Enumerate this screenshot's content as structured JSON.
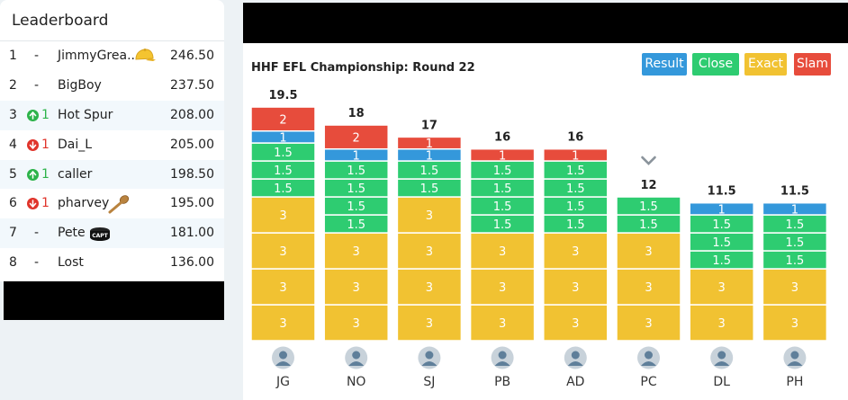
{
  "leaderboard": {
    "title": "Leaderboard",
    "rows": [
      {
        "rank": "1",
        "move": "-",
        "dir": "none",
        "name": "JimmyGrea...",
        "badge": "hat",
        "score": "246.50"
      },
      {
        "rank": "2",
        "move": "-",
        "dir": "none",
        "name": "BigBoy",
        "badge": "",
        "score": "237.50"
      },
      {
        "rank": "3",
        "move": "1",
        "dir": "up",
        "name": "Hot Spur",
        "badge": "",
        "score": "208.00"
      },
      {
        "rank": "4",
        "move": "1",
        "dir": "down",
        "name": "Dai_L",
        "badge": "",
        "score": "205.00"
      },
      {
        "rank": "5",
        "move": "1",
        "dir": "up",
        "name": "caller",
        "badge": "",
        "score": "198.50"
      },
      {
        "rank": "6",
        "move": "1",
        "dir": "down",
        "name": "pharvey",
        "badge": "spoon",
        "score": "195.00"
      },
      {
        "rank": "7",
        "move": "-",
        "dir": "none",
        "name": "Pete",
        "badge": "capt",
        "score": "181.00"
      },
      {
        "rank": "8",
        "move": "-",
        "dir": "none",
        "name": "Lost",
        "badge": "",
        "score": "136.00"
      }
    ],
    "captain_badge_text": "CAPT"
  },
  "chart": {
    "title": "HHF EFL Championship: Round 22"
  },
  "colors": {
    "result": "#3498db",
    "close": "#2ecc71",
    "exact": "#f1c232",
    "slam": "#e74c3c"
  },
  "chart_data": {
    "type": "bar",
    "stacked": true,
    "title": "HHF EFL Championship: Round 22",
    "legend": [
      "Result",
      "Close",
      "Exact",
      "Slam"
    ],
    "legend_position": "top-right",
    "players": [
      "JG",
      "NO",
      "SJ",
      "PB",
      "AD",
      "PC",
      "DL",
      "PH"
    ],
    "totals": [
      "19.5",
      "18",
      "17",
      "16",
      "16",
      "12",
      "11.5",
      "11.5"
    ],
    "stacks": [
      [
        {
          "cat": "exact",
          "v": 3
        },
        {
          "cat": "exact",
          "v": 3
        },
        {
          "cat": "exact",
          "v": 3
        },
        {
          "cat": "exact",
          "v": 3
        },
        {
          "cat": "close",
          "v": 1.5
        },
        {
          "cat": "close",
          "v": 1.5
        },
        {
          "cat": "close",
          "v": 1.5
        },
        {
          "cat": "result",
          "v": 1
        },
        {
          "cat": "slam",
          "v": 2
        }
      ],
      [
        {
          "cat": "exact",
          "v": 3
        },
        {
          "cat": "exact",
          "v": 3
        },
        {
          "cat": "exact",
          "v": 3
        },
        {
          "cat": "close",
          "v": 1.5
        },
        {
          "cat": "close",
          "v": 1.5
        },
        {
          "cat": "close",
          "v": 1.5
        },
        {
          "cat": "close",
          "v": 1.5
        },
        {
          "cat": "result",
          "v": 1
        },
        {
          "cat": "slam",
          "v": 2
        }
      ],
      [
        {
          "cat": "exact",
          "v": 3
        },
        {
          "cat": "exact",
          "v": 3
        },
        {
          "cat": "exact",
          "v": 3
        },
        {
          "cat": "exact",
          "v": 3
        },
        {
          "cat": "close",
          "v": 1.5
        },
        {
          "cat": "close",
          "v": 1.5
        },
        {
          "cat": "result",
          "v": 1
        },
        {
          "cat": "slam",
          "v": 1
        }
      ],
      [
        {
          "cat": "exact",
          "v": 3
        },
        {
          "cat": "exact",
          "v": 3
        },
        {
          "cat": "exact",
          "v": 3
        },
        {
          "cat": "close",
          "v": 1.5
        },
        {
          "cat": "close",
          "v": 1.5
        },
        {
          "cat": "close",
          "v": 1.5
        },
        {
          "cat": "close",
          "v": 1.5
        },
        {
          "cat": "slam",
          "v": 1
        }
      ],
      [
        {
          "cat": "exact",
          "v": 3
        },
        {
          "cat": "exact",
          "v": 3
        },
        {
          "cat": "exact",
          "v": 3
        },
        {
          "cat": "close",
          "v": 1.5
        },
        {
          "cat": "close",
          "v": 1.5
        },
        {
          "cat": "close",
          "v": 1.5
        },
        {
          "cat": "close",
          "v": 1.5
        },
        {
          "cat": "slam",
          "v": 1
        }
      ],
      [
        {
          "cat": "exact",
          "v": 3
        },
        {
          "cat": "exact",
          "v": 3
        },
        {
          "cat": "exact",
          "v": 3
        },
        {
          "cat": "close",
          "v": 1.5
        },
        {
          "cat": "close",
          "v": 1.5
        }
      ],
      [
        {
          "cat": "exact",
          "v": 3
        },
        {
          "cat": "exact",
          "v": 3
        },
        {
          "cat": "close",
          "v": 1.5
        },
        {
          "cat": "close",
          "v": 1.5
        },
        {
          "cat": "close",
          "v": 1.5
        },
        {
          "cat": "result",
          "v": 1
        }
      ],
      [
        {
          "cat": "exact",
          "v": 3
        },
        {
          "cat": "exact",
          "v": 3
        },
        {
          "cat": "close",
          "v": 1.5
        },
        {
          "cat": "close",
          "v": 1.5
        },
        {
          "cat": "close",
          "v": 1.5
        },
        {
          "cat": "result",
          "v": 1
        }
      ]
    ],
    "ylim": [
      0,
      19.5
    ],
    "expand_indicator_player": "PC"
  }
}
